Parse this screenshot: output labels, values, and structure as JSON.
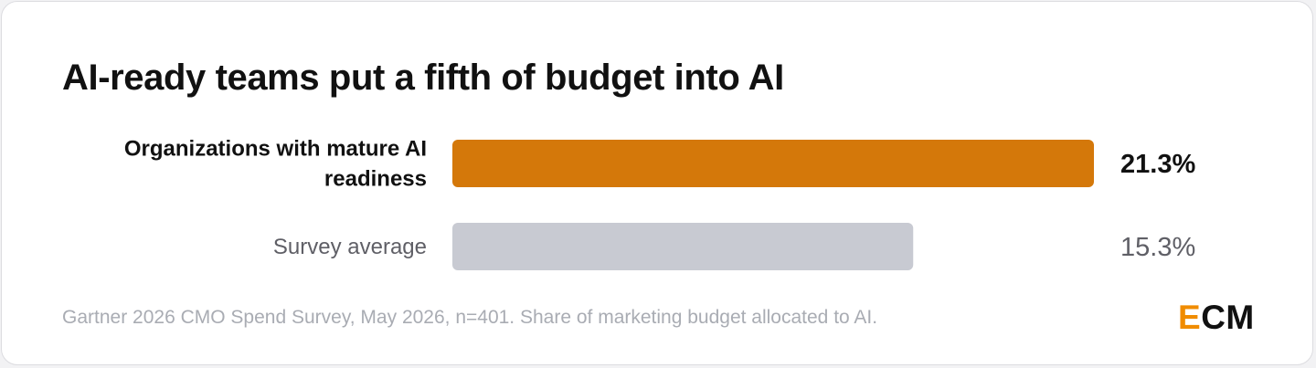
{
  "title": "AI-ready teams put a fifth of budget into AI",
  "footnote": "Gartner 2026 CMO Spend Survey, May 2026, n=401. Share of marketing budget allocated to AI.",
  "logo": {
    "first": "E",
    "rest": "CM",
    "accent_color": "#f08c00"
  },
  "chart_data": {
    "type": "bar",
    "orientation": "horizontal",
    "title": "AI-ready teams put a fifth of budget into AI",
    "xlabel": "",
    "ylabel": "",
    "xlim": [
      0,
      21.3
    ],
    "grid": false,
    "legend": "none",
    "categories": [
      [
        "Organizations with mature AI",
        "readiness"
      ],
      [
        "Survey average"
      ]
    ],
    "values": [
      21.3,
      15.3
    ],
    "value_labels": [
      "21.3%",
      "15.3%"
    ],
    "colors": [
      "#d4780a",
      "#c8cad2"
    ],
    "label_colors": [
      "#111111",
      "#5f5f66"
    ],
    "label_weights": [
      "bold",
      "normal"
    ]
  }
}
